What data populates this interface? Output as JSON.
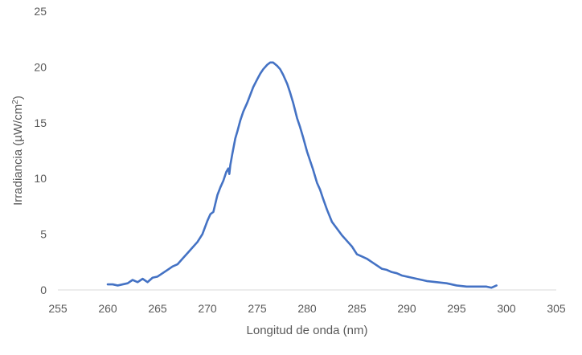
{
  "chart_data": {
    "type": "line",
    "title": "",
    "xlabel": "Longitud de onda (nm)",
    "ylabel_prefix": "Irradiancia (µW/cm",
    "ylabel_sup": "2",
    "ylabel_suffix": ")",
    "xlim": [
      255,
      305
    ],
    "ylim": [
      0,
      25
    ],
    "x_ticks": [
      255,
      260,
      265,
      270,
      275,
      280,
      285,
      290,
      295,
      300,
      305
    ],
    "y_ticks": [
      0,
      5,
      10,
      15,
      20,
      25
    ],
    "grid": false,
    "legend": "none",
    "series": [
      {
        "color": "#4472c4",
        "x": [
          260,
          260.5,
          261,
          261.5,
          262,
          262.5,
          263,
          263.5,
          264,
          264.5,
          265,
          265.5,
          266,
          266.5,
          267,
          267.5,
          268,
          268.5,
          269,
          269.5,
          270,
          270.3,
          270.6,
          271,
          271.3,
          271.6,
          271.9,
          272.1,
          272.2,
          272.3,
          272.5,
          272.8,
          273,
          273.3,
          273.6,
          274,
          274.3,
          274.6,
          275,
          275.3,
          275.6,
          276,
          276.3,
          276.6,
          277,
          277.3,
          277.6,
          278,
          278.3,
          278.6,
          279,
          279.3,
          279.6,
          280,
          280.3,
          280.6,
          281,
          281.3,
          281.6,
          282,
          282.5,
          283,
          283.5,
          284,
          284.5,
          285,
          285.5,
          286,
          286.5,
          287,
          287.5,
          288,
          288.5,
          289,
          289.5,
          290,
          291,
          292,
          293,
          294,
          295,
          296,
          297,
          298,
          298.5,
          299
        ],
        "values": [
          0.5,
          0.5,
          0.4,
          0.5,
          0.6,
          0.9,
          0.7,
          1.0,
          0.7,
          1.1,
          1.2,
          1.5,
          1.8,
          2.1,
          2.3,
          2.8,
          3.3,
          3.8,
          4.3,
          5.0,
          6.2,
          6.8,
          7.0,
          8.5,
          9.2,
          9.8,
          10.6,
          10.9,
          10.4,
          11.2,
          12.2,
          13.6,
          14.2,
          15.2,
          16.0,
          16.8,
          17.5,
          18.2,
          18.9,
          19.4,
          19.8,
          20.2,
          20.4,
          20.4,
          20.1,
          19.8,
          19.3,
          18.5,
          17.7,
          16.8,
          15.4,
          14.6,
          13.7,
          12.4,
          11.6,
          10.8,
          9.6,
          9.0,
          8.2,
          7.2,
          6.1,
          5.5,
          4.9,
          4.4,
          3.9,
          3.2,
          3.0,
          2.8,
          2.5,
          2.2,
          1.9,
          1.8,
          1.6,
          1.5,
          1.3,
          1.2,
          1.0,
          0.8,
          0.7,
          0.6,
          0.4,
          0.3,
          0.3,
          0.3,
          0.2,
          0.4
        ]
      }
    ]
  }
}
